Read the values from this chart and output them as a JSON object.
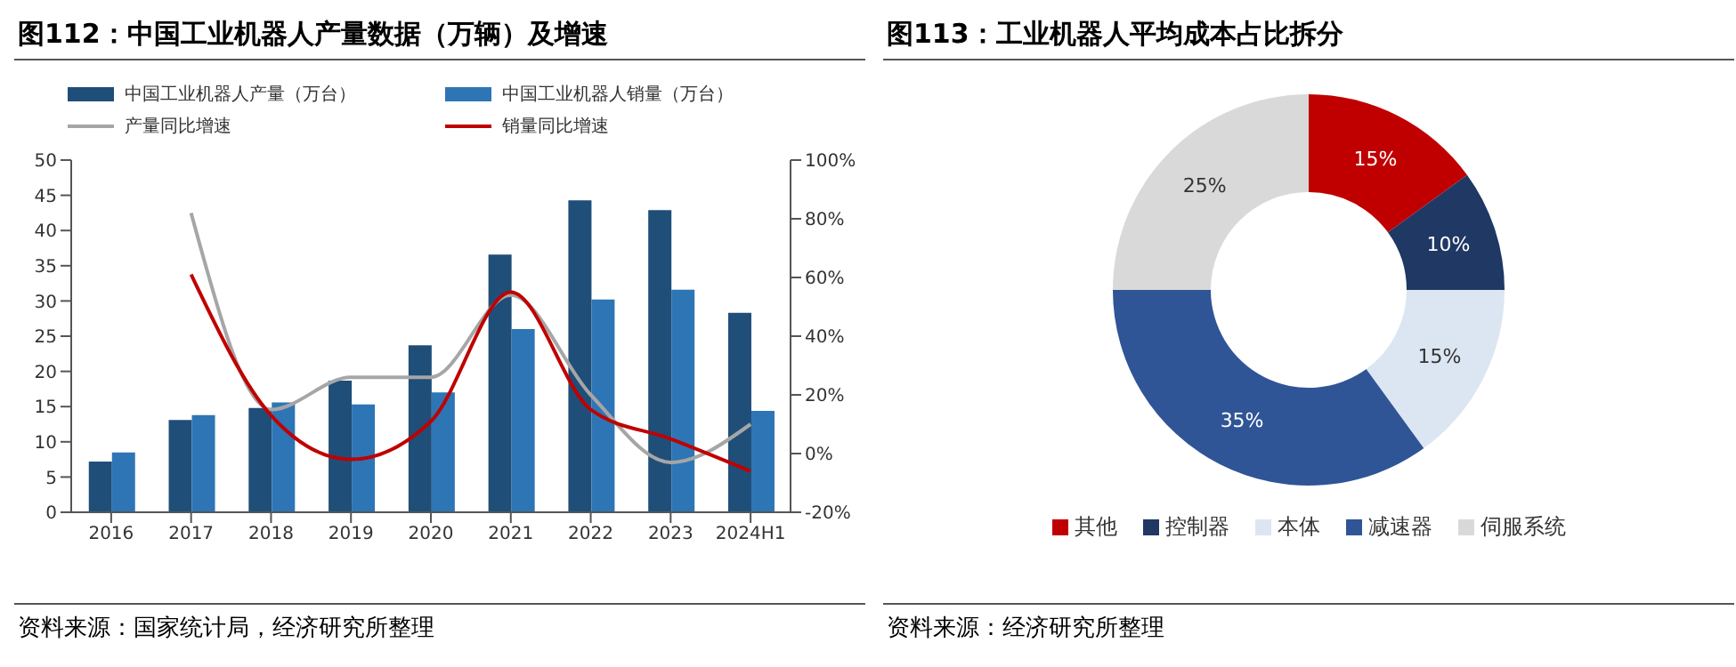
{
  "chart_data": [
    {
      "type": "bar",
      "title": "图112：中国工业机器人产量数据（万辆）及增速",
      "categories": [
        "2016",
        "2017",
        "2018",
        "2019",
        "2020",
        "2021",
        "2022",
        "2023",
        "2024H1"
      ],
      "series": [
        {
          "name": "中国工业机器人产量（万台）",
          "color": "#1f4e79",
          "values": [
            7.2,
            13.1,
            14.8,
            18.7,
            23.7,
            36.6,
            44.3,
            42.9,
            28.3
          ]
        },
        {
          "name": "中国工业机器人销量（万台）",
          "color": "#2e75b6",
          "values": [
            8.5,
            13.8,
            15.6,
            15.3,
            17.0,
            26.0,
            30.2,
            31.6,
            14.4
          ]
        },
        {
          "name": "产量同比增速",
          "type": "line",
          "axis": "y2",
          "color": "#a6a6a6",
          "values": [
            null,
            82,
            15,
            26,
            26,
            54,
            20,
            -3,
            10
          ]
        },
        {
          "name": "销量同比增速",
          "type": "line",
          "axis": "y2",
          "color": "#c00000",
          "values": [
            null,
            61,
            13,
            -2,
            11,
            55,
            15,
            5,
            -6
          ]
        }
      ],
      "ylim": [
        0,
        50
      ],
      "yticks": [
        0,
        5,
        10,
        15,
        20,
        25,
        30,
        35,
        40,
        45,
        50
      ],
      "y2lim": [
        -20,
        100
      ],
      "y2ticks": [
        {
          "value": -20,
          "label": "-20%"
        },
        {
          "value": 0,
          "label": "0%"
        },
        {
          "value": 20,
          "label": "20%"
        },
        {
          "value": 40,
          "label": "40%"
        },
        {
          "value": 60,
          "label": "60%"
        },
        {
          "value": 80,
          "label": "80%"
        },
        {
          "value": 100,
          "label": "100%"
        }
      ],
      "legend": "top",
      "marker": "none",
      "annotations": [
        "资料来源：国家统计局，经济研究所整理"
      ]
    },
    {
      "type": "donut",
      "title": "图113：工业机器人平均成本占比拆分",
      "categories": [
        "其他",
        "控制器",
        "本体",
        "减速器",
        "伺服系统"
      ],
      "values": [
        15,
        10,
        15,
        35,
        25
      ],
      "colors": [
        "#c00000",
        "#1f3864",
        "#dce6f2",
        "#2f5597",
        "#d9d9d9"
      ],
      "value_labels": [
        "15%",
        "10%",
        "15%",
        "35%",
        "25%"
      ],
      "legend": "bottom",
      "annotations": [
        "资料来源：经济研究所整理"
      ]
    }
  ]
}
